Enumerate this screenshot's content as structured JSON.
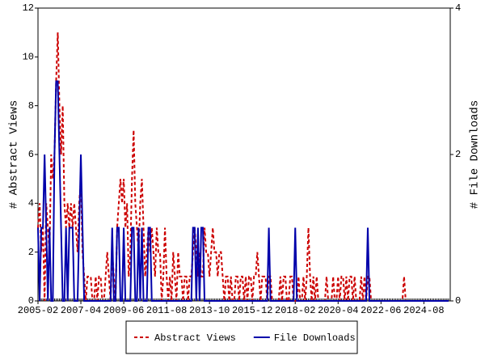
{
  "chart_data": {
    "type": "line",
    "x": [
      "2005-02",
      "2005-03",
      "2005-04",
      "2005-05",
      "2005-06",
      "2005-07",
      "2005-08",
      "2005-09",
      "2005-10",
      "2005-11",
      "2005-12",
      "2006-01",
      "2006-02",
      "2006-03",
      "2006-04",
      "2006-05",
      "2006-06",
      "2006-07",
      "2006-08",
      "2006-09",
      "2006-10",
      "2006-11",
      "2006-12",
      "2007-01",
      "2007-02",
      "2007-03",
      "2007-04",
      "2007-05",
      "2007-06",
      "2007-07",
      "2007-08",
      "2007-09",
      "2007-10",
      "2007-11",
      "2007-12",
      "2008-01",
      "2008-02",
      "2008-03",
      "2008-04",
      "2008-05",
      "2008-06",
      "2008-07",
      "2008-08",
      "2008-09",
      "2008-10",
      "2008-11",
      "2008-12",
      "2009-01",
      "2009-02",
      "2009-03",
      "2009-04",
      "2009-05",
      "2009-06",
      "2009-07",
      "2009-08",
      "2009-09",
      "2009-10",
      "2009-11",
      "2009-12",
      "2010-01",
      "2010-02",
      "2010-03",
      "2010-04",
      "2010-05",
      "2010-06",
      "2010-07",
      "2010-08",
      "2010-09",
      "2010-10",
      "2010-11",
      "2010-12",
      "2011-01",
      "2011-02",
      "2011-03",
      "2011-04",
      "2011-05",
      "2011-06",
      "2011-07",
      "2011-08",
      "2011-09",
      "2011-10",
      "2011-11",
      "2011-12",
      "2012-01",
      "2012-02",
      "2012-03",
      "2012-04",
      "2012-05",
      "2012-06",
      "2012-07",
      "2012-08",
      "2012-09",
      "2012-10",
      "2012-11",
      "2012-12",
      "2013-01",
      "2013-02",
      "2013-03",
      "2013-04",
      "2013-05",
      "2013-06",
      "2013-07",
      "2013-08",
      "2013-09",
      "2013-10",
      "2013-11",
      "2013-12",
      "2014-01",
      "2014-02",
      "2014-03",
      "2014-04",
      "2014-05",
      "2014-06",
      "2014-07",
      "2014-08",
      "2014-09",
      "2014-10",
      "2014-11",
      "2014-12",
      "2015-01",
      "2015-02",
      "2015-03",
      "2015-04",
      "2015-05",
      "2015-06",
      "2015-07",
      "2015-08",
      "2015-09",
      "2015-10",
      "2015-11",
      "2015-12",
      "2016-01",
      "2016-02",
      "2016-03",
      "2016-04",
      "2016-05",
      "2016-06",
      "2016-07",
      "2016-08",
      "2016-09",
      "2016-10",
      "2016-11",
      "2016-12",
      "2017-01",
      "2017-02",
      "2017-03",
      "2017-04",
      "2017-05",
      "2017-06",
      "2017-07",
      "2017-08",
      "2017-09",
      "2017-10",
      "2017-11",
      "2017-12",
      "2018-01",
      "2018-02",
      "2018-03",
      "2018-04",
      "2018-05",
      "2018-06",
      "2018-07",
      "2018-08",
      "2018-09",
      "2018-10",
      "2018-11",
      "2018-12",
      "2019-01",
      "2019-02",
      "2019-03",
      "2019-04",
      "2019-05",
      "2019-06",
      "2019-07",
      "2019-08",
      "2019-09",
      "2019-10",
      "2019-11",
      "2019-12",
      "2020-01",
      "2020-02",
      "2020-03",
      "2020-04",
      "2020-05",
      "2020-06",
      "2020-07",
      "2020-08",
      "2020-09",
      "2020-10",
      "2020-11",
      "2020-12",
      "2021-01",
      "2021-02",
      "2021-03",
      "2021-04",
      "2021-05",
      "2021-06",
      "2021-07",
      "2021-08",
      "2021-09",
      "2021-10",
      "2021-11",
      "2021-12",
      "2022-01",
      "2022-02",
      "2022-03",
      "2022-04",
      "2022-05",
      "2022-06",
      "2022-07",
      "2022-08",
      "2022-09",
      "2022-10",
      "2022-11",
      "2022-12",
      "2023-01",
      "2023-02",
      "2023-03",
      "2023-04",
      "2023-05",
      "2023-06",
      "2023-07",
      "2023-08",
      "2023-09",
      "2023-10",
      "2023-11",
      "2023-12",
      "2024-01",
      "2024-02",
      "2024-03",
      "2024-04",
      "2024-05",
      "2024-06",
      "2024-07",
      "2024-08",
      "2024-09",
      "2024-10",
      "2024-11",
      "2024-12",
      "2025-01",
      "2025-02",
      "2025-03",
      "2025-04",
      "2025-05",
      "2025-06",
      "2025-07",
      "2025-08",
      "2025-09",
      "2025-10",
      "2025-11"
    ],
    "xticks": [
      0,
      26,
      52,
      78,
      104,
      130,
      156,
      182,
      208,
      234
    ],
    "series": [
      {
        "name": "Abstract Views",
        "color": "#cc0000",
        "dashed": true,
        "values": [
          3,
          4,
          2,
          3,
          0,
          4,
          3,
          2,
          6,
          5,
          6,
          9,
          11,
          8,
          6,
          8,
          4,
          3,
          4,
          3,
          4,
          3,
          4,
          3,
          2,
          4,
          5,
          2,
          1,
          0,
          1,
          1,
          1,
          0,
          0,
          1,
          0,
          1,
          1,
          0,
          0,
          1,
          2,
          1,
          0,
          2,
          1,
          0,
          3,
          4,
          5,
          4,
          5,
          3,
          4,
          1,
          2,
          5,
          7,
          4,
          3,
          2,
          4,
          5,
          3,
          1,
          2,
          3,
          2,
          3,
          2,
          1,
          3,
          2,
          2,
          0,
          1,
          3,
          1,
          0,
          1,
          0,
          2,
          1,
          0,
          2,
          1,
          1,
          0,
          1,
          1,
          0,
          1,
          1,
          2,
          3,
          2,
          1,
          2,
          1,
          1,
          3,
          2,
          2,
          1,
          2,
          3,
          2,
          2,
          1,
          2,
          2,
          1,
          0,
          1,
          1,
          0,
          1,
          0,
          0,
          1,
          1,
          0,
          1,
          1,
          0,
          1,
          0,
          1,
          1,
          0,
          1,
          1,
          2,
          1,
          0,
          1,
          1,
          1,
          0,
          1,
          1,
          0,
          0,
          0,
          0,
          0,
          1,
          0,
          1,
          1,
          0,
          0,
          1,
          1,
          0,
          0,
          0,
          1,
          0,
          0,
          1,
          0,
          1,
          3,
          1,
          0,
          1,
          0,
          1,
          0,
          0,
          0,
          0,
          0,
          1,
          0,
          0,
          0,
          1,
          0,
          0,
          1,
          0,
          1,
          1,
          0,
          1,
          0,
          1,
          1,
          0,
          1,
          0,
          0,
          0,
          1,
          0,
          1,
          0,
          1,
          1,
          0,
          0,
          0,
          0,
          0,
          0,
          0,
          0,
          0,
          0,
          0,
          0,
          0,
          0,
          0,
          0,
          0,
          0,
          0,
          0,
          1,
          0,
          0,
          0,
          0,
          0,
          0,
          0,
          0,
          0,
          0,
          0,
          0,
          0,
          0,
          0,
          0,
          0,
          0,
          0,
          0,
          0,
          0,
          0,
          0,
          0,
          0,
          0
        ]
      },
      {
        "name": "File Downloads",
        "color": "#0000aa",
        "axis": "y2",
        "values": [
          1,
          0,
          1,
          1,
          2,
          1,
          0,
          1,
          0,
          0,
          2,
          3,
          3,
          2,
          1,
          0,
          0,
          1,
          0,
          1,
          1,
          1,
          0,
          0,
          0,
          1,
          2,
          1,
          0,
          0,
          0,
          0,
          0,
          0,
          0,
          0,
          0,
          0,
          0,
          0,
          0,
          0,
          0,
          0,
          0,
          1,
          0,
          0,
          1,
          1,
          0,
          0,
          1,
          0,
          0,
          0,
          0,
          1,
          1,
          0,
          0,
          1,
          0,
          1,
          0,
          0,
          0,
          1,
          1,
          0,
          0,
          0,
          0,
          0,
          0,
          0,
          0,
          0,
          0,
          0,
          0,
          0,
          0,
          0,
          0,
          0,
          0,
          0,
          0,
          0,
          0,
          0,
          0,
          0,
          1,
          1,
          0,
          1,
          0,
          1,
          1,
          0,
          0,
          0,
          0,
          0,
          0,
          0,
          0,
          0,
          0,
          0,
          0,
          0,
          0,
          0,
          0,
          0,
          0,
          0,
          0,
          0,
          0,
          0,
          0,
          0,
          0,
          0,
          0,
          0,
          0,
          0,
          0,
          0,
          0,
          0,
          0,
          0,
          0,
          0,
          1,
          0,
          0,
          0,
          0,
          0,
          0,
          0,
          0,
          0,
          0,
          0,
          0,
          0,
          0,
          0,
          1,
          0,
          0,
          0,
          0,
          0,
          0,
          0,
          0,
          0,
          0,
          0,
          0,
          0,
          0,
          0,
          0,
          0,
          0,
          0,
          0,
          0,
          0,
          0,
          0,
          0,
          0,
          0,
          0,
          0,
          0,
          0,
          0,
          0,
          0,
          0,
          0,
          0,
          0,
          0,
          0,
          0,
          0,
          0,
          1,
          0,
          0,
          0,
          0,
          0,
          0,
          0,
          0,
          0,
          0,
          0,
          0,
          0,
          0,
          0,
          0,
          0,
          0,
          0,
          0,
          0,
          0,
          0,
          0,
          0,
          0,
          0,
          0,
          0,
          0,
          0,
          0,
          0,
          0,
          0,
          0,
          0,
          0,
          0,
          0,
          0,
          0,
          0,
          0,
          0,
          0,
          0,
          0,
          0
        ]
      }
    ],
    "ylabel": "# Abstract Views",
    "y2label": "# File Downloads",
    "ylim": [
      0,
      12
    ],
    "yticks": [
      0,
      2,
      4,
      6,
      8,
      10,
      12
    ],
    "y2lim": [
      0,
      4
    ],
    "y2ticks": [
      0,
      2,
      4
    ],
    "legend": "bottom"
  }
}
